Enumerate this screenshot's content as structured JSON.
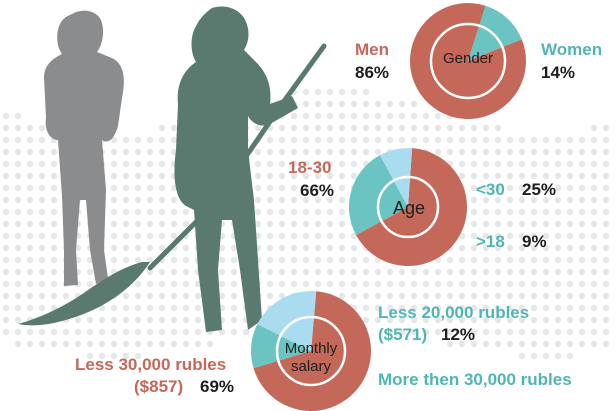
{
  "colors": {
    "red": "#c4695a",
    "teal": "#6cc4c2",
    "light_blue": "#aadcef",
    "figure_grey": "#8a8c8e",
    "figure_green": "#5a7a70",
    "dots": "#e6e7e8",
    "label_teal": "#4fb6b4"
  },
  "chart_data": [
    {
      "type": "pie",
      "title": "Gender",
      "slices": [
        {
          "name": "Men",
          "value": 86,
          "label": "86%",
          "color": "#c4695a"
        },
        {
          "name": "Women",
          "value": 14,
          "label": "14%",
          "color": "#6cc4c2"
        }
      ]
    },
    {
      "type": "pie",
      "title": "Age",
      "slices": [
        {
          "name": "18-30",
          "value": 66,
          "label": "66%",
          "color": "#c4695a"
        },
        {
          "name": "<30",
          "value": 25,
          "label": "25%",
          "color": "#6cc4c2"
        },
        {
          "name": ">18",
          "value": 9,
          "label": "9%",
          "color": "#aadcef"
        }
      ]
    },
    {
      "type": "pie",
      "title_line1": "Monthly",
      "title_line2": "salary",
      "slices": [
        {
          "name": "Less 30,000 rubles",
          "sub": "($857)",
          "value": 69,
          "label": "69%",
          "color": "#c4695a"
        },
        {
          "name": "Less 20,000 rubles",
          "sub": "($571)",
          "value": 12,
          "label": "12%",
          "color": "#6cc4c2"
        },
        {
          "name": "More then 30,000 rubles",
          "sub": "",
          "value": 19,
          "label": "",
          "color": "#aadcef"
        }
      ]
    }
  ]
}
